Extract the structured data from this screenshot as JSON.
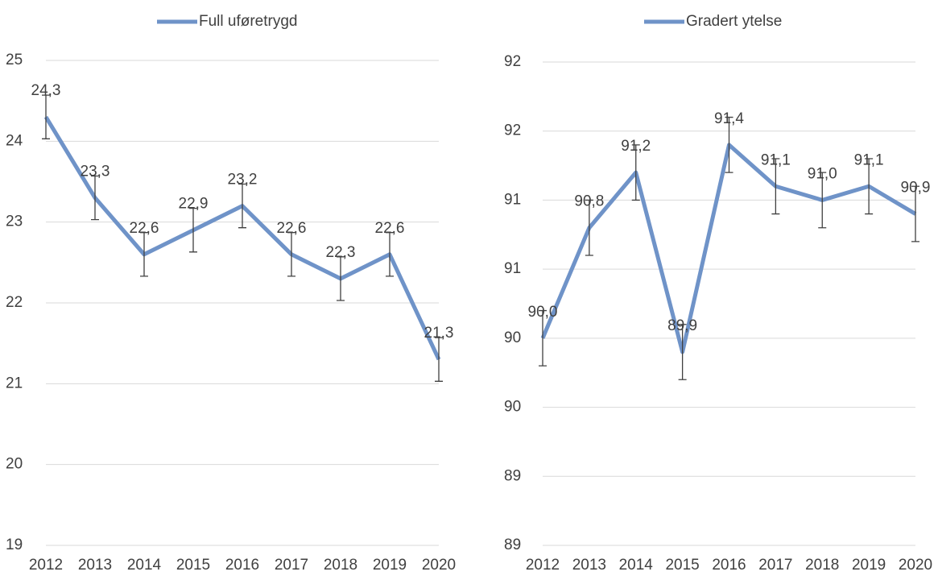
{
  "chart_data": [
    {
      "type": "line",
      "categories": [
        "2012",
        "2013",
        "2014",
        "2015",
        "2016",
        "2017",
        "2018",
        "2019",
        "2020"
      ],
      "series": [
        {
          "name": "Full uføretrygd",
          "color": "#6f93c8",
          "values": [
            24.3,
            23.3,
            22.6,
            22.9,
            23.2,
            22.6,
            22.3,
            22.6,
            21.3
          ],
          "value_labels": [
            "24,3",
            "23,3",
            "22,6",
            "22,9",
            "23,2",
            "22,6",
            "22,3",
            "22,6",
            "21,3"
          ],
          "errors": [
            0.27,
            0.27,
            0.27,
            0.27,
            0.27,
            0.27,
            0.27,
            0.27,
            0.27
          ]
        }
      ],
      "ylim": [
        19,
        25
      ],
      "yticks": [
        19,
        20,
        21,
        22,
        23,
        24,
        25
      ],
      "grid": true,
      "legend": "top"
    },
    {
      "type": "line",
      "categories": [
        "2012",
        "2013",
        "2014",
        "2015",
        "2016",
        "2017",
        "2018",
        "2019",
        "2020"
      ],
      "series": [
        {
          "name": "Gradert ytelse",
          "color": "#6f93c8",
          "values": [
            90.0,
            90.8,
            91.2,
            89.9,
            91.4,
            91.1,
            91.0,
            91.1,
            90.9
          ],
          "value_labels": [
            "90,0",
            "90,8",
            "91,2",
            "89,9",
            "91,4",
            "91,1",
            "91,0",
            "91,1",
            "90,9"
          ],
          "errors": [
            0.2,
            0.2,
            0.2,
            0.2,
            0.2,
            0.2,
            0.2,
            0.2,
            0.2
          ]
        }
      ],
      "ylim": [
        88.5,
        92.0
      ],
      "yticks": [
        {
          "value": 88.5,
          "label": "89"
        },
        {
          "value": 89.0,
          "label": "89"
        },
        {
          "value": 89.5,
          "label": "90"
        },
        {
          "value": 90.0,
          "label": "90"
        },
        {
          "value": 90.5,
          "label": "91"
        },
        {
          "value": 91.0,
          "label": "91"
        },
        {
          "value": 91.5,
          "label": "92"
        },
        {
          "value": 92.0,
          "label": "92"
        }
      ],
      "grid": true,
      "legend": "top"
    }
  ]
}
